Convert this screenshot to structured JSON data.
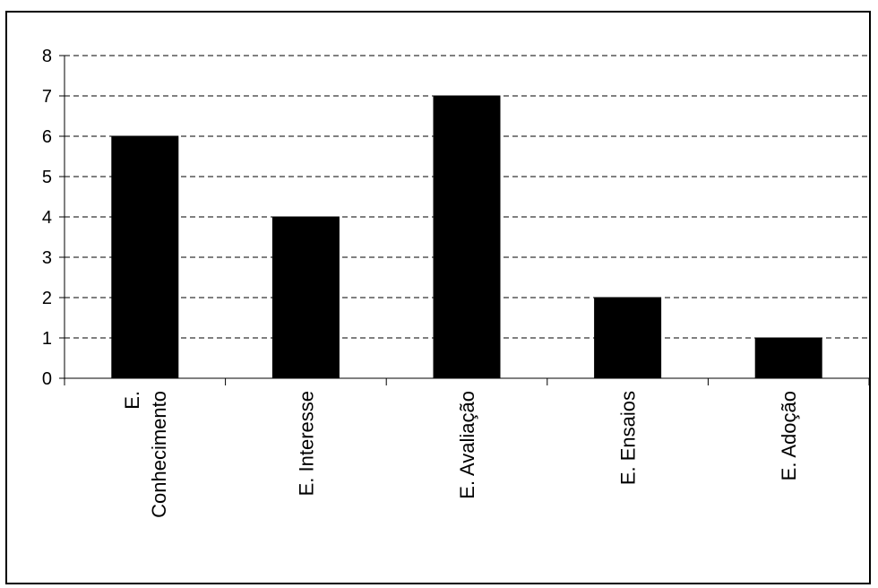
{
  "chart_data": {
    "type": "bar",
    "categories": [
      [
        "E.",
        "Conhecimento"
      ],
      [
        "E. Interesse"
      ],
      [
        "E. Avaliação"
      ],
      [
        "E. Ensaios"
      ],
      [
        "E. Adoção"
      ]
    ],
    "values": [
      6,
      4,
      7,
      2,
      1
    ],
    "ylim": [
      0,
      8
    ],
    "yticks": [
      "0",
      "1",
      "2",
      "3",
      "4",
      "5",
      "6",
      "7",
      "8"
    ],
    "grid": "horizontal dashed",
    "bar_color": "#000000",
    "legend": "none"
  }
}
